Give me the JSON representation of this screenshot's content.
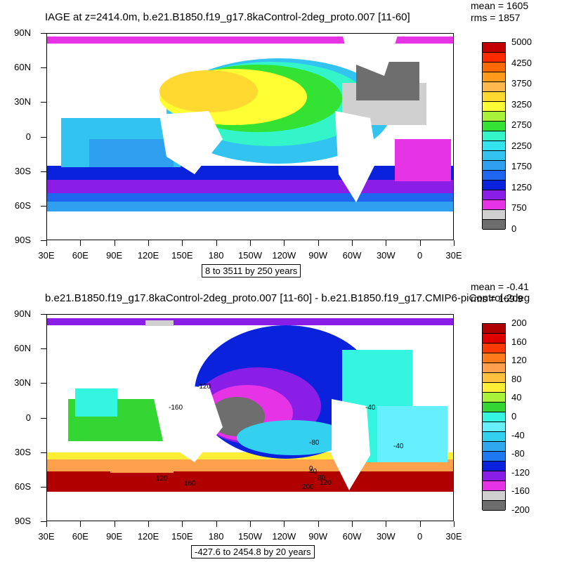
{
  "top": {
    "title": "IAGE at z=2414.0m, b.e21.B1850.f19_g17.8kaControl-2deg_proto.007 [11-60]",
    "mean_text": "mean = 1605",
    "rms_text": "rms = 1857",
    "range_text": "8 to 3511 by 250 years",
    "colorbar_colors": [
      "#c40000",
      "#ff2a00",
      "#ff6a00",
      "#ff9a1a",
      "#ffb84d",
      "#ffd92f",
      "#ffff33",
      "#a8f23a",
      "#33e233",
      "#33f5c9",
      "#33e3f0",
      "#33c3f0",
      "#2f9ff0",
      "#1e66f0",
      "#0a22dc",
      "#8a1ee6",
      "#e633e6",
      "#d0d0d0",
      "#6e6e6e"
    ],
    "colorbar_labels": [
      "5000",
      "4250",
      "3750",
      "3250",
      "2750",
      "2250",
      "1750",
      "1250",
      "750",
      "0"
    ]
  },
  "bottom": {
    "title": "b.e21.B1850.f19_g17.8kaControl-2deg_proto.007 [11-60] - b.e21.B1850.f19_g17.CMIP6-piControl-2deg",
    "mean_text": "mean = -0.41",
    "rms_text": "rms = 169.9",
    "range_text": "-427.6 to 2454.8 by 20 years",
    "colorbar_colors": [
      "#b00000",
      "#e00000",
      "#ff3a00",
      "#ff7a1a",
      "#ffa04d",
      "#ffc040",
      "#ffee33",
      "#a8f23a",
      "#33d633",
      "#33f5e0",
      "#66f0ff",
      "#33d0f0",
      "#2fa8f0",
      "#1e78f0",
      "#0a22dc",
      "#8a1ee6",
      "#e633e6",
      "#d0d0d0",
      "#6e6e6e"
    ],
    "colorbar_labels": [
      "200",
      "160",
      "120",
      "80",
      "40",
      "0",
      "-40",
      "-80",
      "-120",
      "-160",
      "-200"
    ],
    "contour_labels": [
      "-120",
      "-160",
      "-40",
      "-80",
      "-40",
      "120",
      "160",
      "0",
      "40",
      "80",
      "120",
      "200"
    ]
  },
  "axes": {
    "lat_labels": [
      "90N",
      "60N",
      "30N",
      "0",
      "30S",
      "60S",
      "90S"
    ],
    "lon_labels": [
      "30E",
      "60E",
      "90E",
      "120E",
      "150E",
      "180",
      "150W",
      "120W",
      "90W",
      "60W",
      "30W",
      "0",
      "30E"
    ]
  }
}
